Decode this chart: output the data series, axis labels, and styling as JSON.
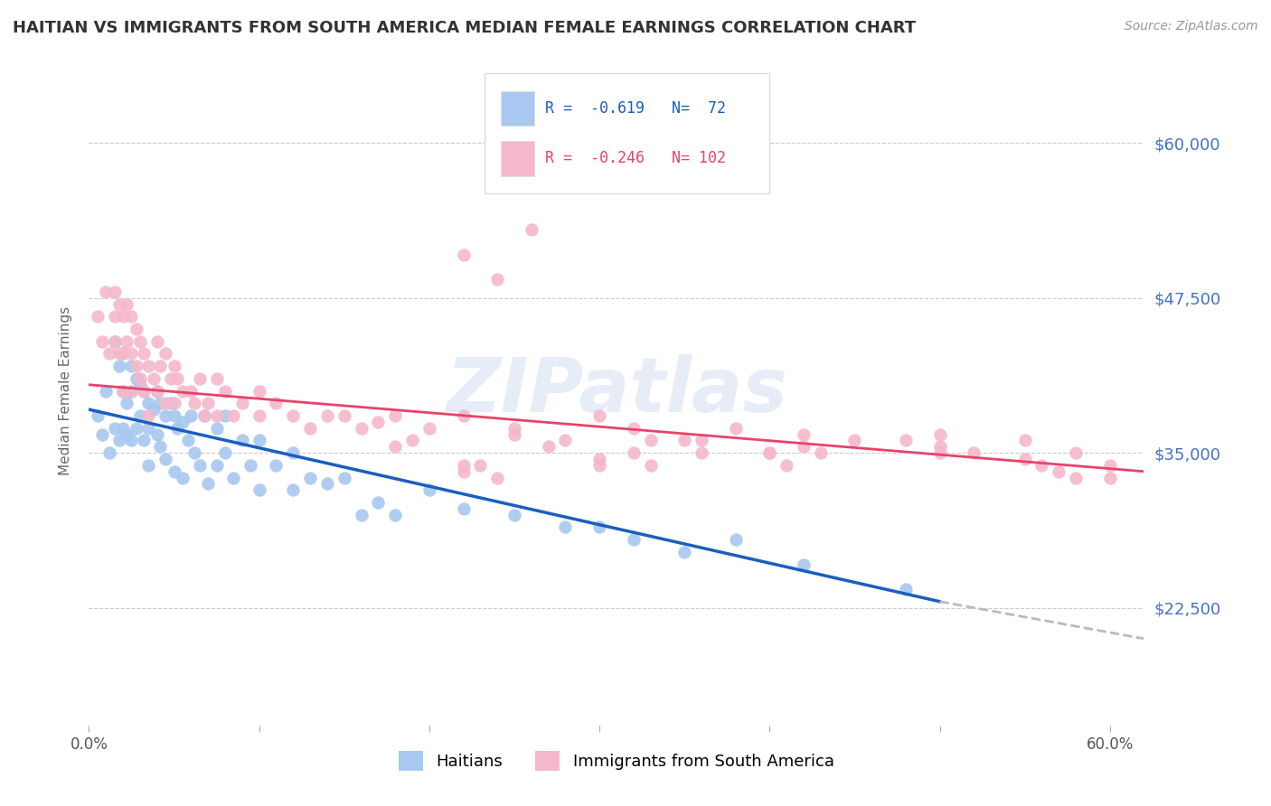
{
  "title": "HAITIAN VS IMMIGRANTS FROM SOUTH AMERICA MEDIAN FEMALE EARNINGS CORRELATION CHART",
  "source": "Source: ZipAtlas.com",
  "ylabel": "Median Female Earnings",
  "ytick_labels": [
    "$60,000",
    "$47,500",
    "$35,000",
    "$22,500"
  ],
  "ytick_values": [
    60000,
    47500,
    35000,
    22500
  ],
  "ylim": [
    13000,
    67000
  ],
  "xlim": [
    0.0,
    0.62
  ],
  "color_blue": "#A8C8F0",
  "color_blue_line": "#1A5FBF",
  "color_pink": "#F5B8CB",
  "color_pink_line": "#E8436A",
  "color_gray_dashed": "#BBBBBB",
  "legend_R1": "-0.619",
  "legend_N1": "72",
  "legend_R2": "-0.246",
  "legend_N2": "102",
  "label1": "Haitians",
  "label2": "Immigrants from South America",
  "watermark": "ZIPatlas",
  "background_color": "#FFFFFF",
  "title_color": "#333333",
  "ytick_color": "#4472C4",
  "blue_scatter_x": [
    0.005,
    0.008,
    0.01,
    0.012,
    0.015,
    0.015,
    0.018,
    0.018,
    0.02,
    0.02,
    0.02,
    0.022,
    0.022,
    0.025,
    0.025,
    0.025,
    0.028,
    0.028,
    0.03,
    0.03,
    0.032,
    0.032,
    0.035,
    0.035,
    0.035,
    0.038,
    0.04,
    0.04,
    0.042,
    0.042,
    0.045,
    0.045,
    0.048,
    0.05,
    0.05,
    0.052,
    0.055,
    0.055,
    0.058,
    0.06,
    0.062,
    0.065,
    0.068,
    0.07,
    0.075,
    0.075,
    0.08,
    0.08,
    0.085,
    0.09,
    0.095,
    0.1,
    0.1,
    0.11,
    0.12,
    0.12,
    0.13,
    0.14,
    0.15,
    0.16,
    0.17,
    0.18,
    0.2,
    0.22,
    0.25,
    0.28,
    0.3,
    0.32,
    0.35,
    0.38,
    0.42,
    0.48
  ],
  "blue_scatter_y": [
    38000,
    36500,
    40000,
    35000,
    44000,
    37000,
    42000,
    36000,
    43000,
    40000,
    37000,
    39000,
    36500,
    42000,
    40000,
    36000,
    41000,
    37000,
    40500,
    38000,
    40000,
    36000,
    39000,
    37000,
    34000,
    38500,
    40000,
    36500,
    39000,
    35500,
    38000,
    34500,
    39000,
    38000,
    33500,
    37000,
    37500,
    33000,
    36000,
    38000,
    35000,
    34000,
    38000,
    32500,
    37000,
    34000,
    38000,
    35000,
    33000,
    36000,
    34000,
    36000,
    32000,
    34000,
    35000,
    32000,
    33000,
    32500,
    33000,
    30000,
    31000,
    30000,
    32000,
    30500,
    30000,
    29000,
    29000,
    28000,
    27000,
    28000,
    26000,
    24000
  ],
  "pink_scatter_x": [
    0.005,
    0.008,
    0.01,
    0.012,
    0.015,
    0.015,
    0.015,
    0.018,
    0.018,
    0.02,
    0.02,
    0.02,
    0.022,
    0.022,
    0.025,
    0.025,
    0.025,
    0.028,
    0.028,
    0.03,
    0.03,
    0.032,
    0.032,
    0.035,
    0.035,
    0.038,
    0.04,
    0.04,
    0.042,
    0.045,
    0.045,
    0.048,
    0.05,
    0.05,
    0.052,
    0.055,
    0.06,
    0.062,
    0.065,
    0.068,
    0.07,
    0.075,
    0.075,
    0.08,
    0.085,
    0.09,
    0.1,
    0.1,
    0.11,
    0.12,
    0.13,
    0.14,
    0.15,
    0.16,
    0.17,
    0.18,
    0.2,
    0.22,
    0.25,
    0.28,
    0.3,
    0.32,
    0.35,
    0.38,
    0.4,
    0.42,
    0.45,
    0.48,
    0.5,
    0.52,
    0.55,
    0.58,
    0.3,
    0.32,
    0.33,
    0.25,
    0.27,
    0.36,
    0.36,
    0.42,
    0.43,
    0.3,
    0.18,
    0.19,
    0.4,
    0.41,
    0.5,
    0.5,
    0.33,
    0.22,
    0.22,
    0.23,
    0.24,
    0.55,
    0.56,
    0.57,
    0.58,
    0.6,
    0.6,
    0.22,
    0.24,
    0.26
  ],
  "pink_scatter_y": [
    46000,
    44000,
    48000,
    43000,
    48000,
    46000,
    44000,
    47000,
    43000,
    46000,
    43000,
    40000,
    47000,
    44000,
    46000,
    43000,
    40000,
    45000,
    42000,
    44000,
    41000,
    43000,
    40000,
    42000,
    38000,
    41000,
    44000,
    40000,
    42000,
    43000,
    39000,
    41000,
    42000,
    39000,
    41000,
    40000,
    40000,
    39000,
    41000,
    38000,
    39000,
    41000,
    38000,
    40000,
    38000,
    39000,
    40000,
    38000,
    39000,
    38000,
    37000,
    38000,
    38000,
    37000,
    37500,
    38000,
    37000,
    38000,
    37000,
    36000,
    38000,
    37000,
    36000,
    37000,
    35000,
    36500,
    36000,
    36000,
    36500,
    35000,
    36000,
    35000,
    34500,
    35000,
    36000,
    36500,
    35500,
    35000,
    36000,
    35500,
    35000,
    34000,
    35500,
    36000,
    35000,
    34000,
    35500,
    35000,
    34000,
    34000,
    33500,
    34000,
    33000,
    34500,
    34000,
    33500,
    33000,
    34000,
    33000,
    51000,
    49000,
    53000
  ]
}
